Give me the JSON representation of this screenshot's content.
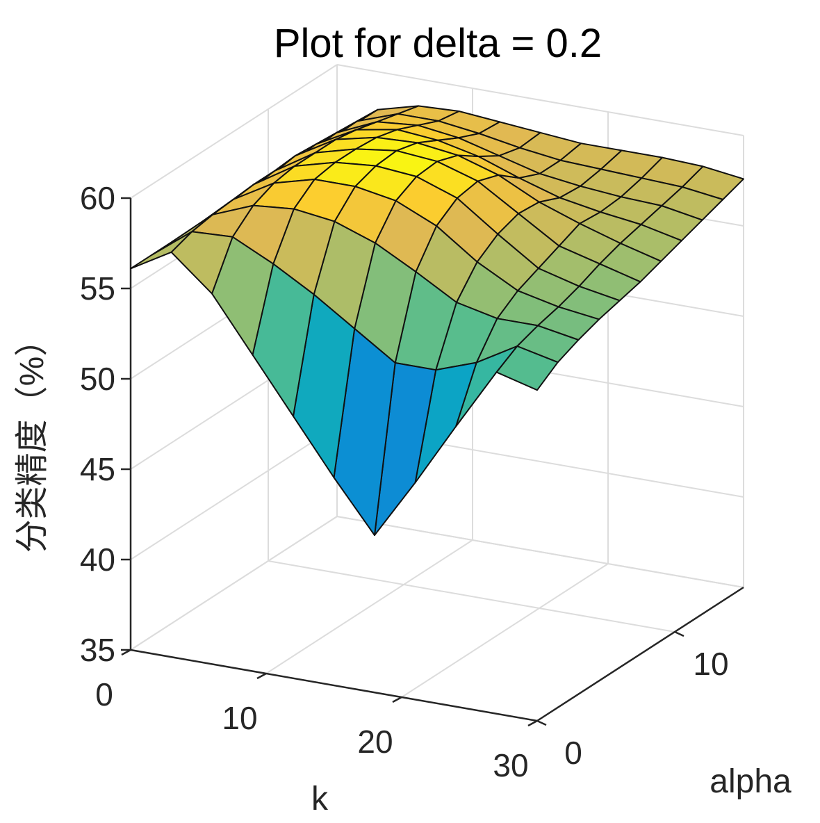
{
  "chart_data": {
    "type": "surface",
    "title": "Plot for delta = 0.2",
    "xlabel": "k",
    "ylabel": "alpha",
    "zlabel": "分类精度（%）",
    "x_ticks": [
      "0",
      "10",
      "20",
      "30"
    ],
    "y_ticks": [
      "0",
      "10"
    ],
    "z_ticks": [
      "35",
      "40",
      "45",
      "50",
      "55",
      "60"
    ],
    "xlim": [
      0,
      30
    ],
    "ylim": [
      0,
      15
    ],
    "zlim": [
      35,
      60
    ],
    "grid": true,
    "colormap": "parula",
    "x": [
      0,
      3,
      6,
      9,
      12,
      15,
      18,
      21,
      24,
      27,
      30
    ],
    "y": [
      0,
      1.5,
      3,
      4.5,
      6,
      7.5,
      9,
      10.5,
      12,
      13.5,
      15
    ],
    "z": [
      [
        56.1,
        56.1,
        56.1,
        56.1,
        56.1,
        56.1,
        56.1,
        56.1,
        56.1,
        56.1,
        56.1
      ],
      [
        57.4,
        57.8,
        58.0,
        58.1,
        58.2,
        58.2,
        58.3,
        58.2,
        58.1,
        58.0,
        57.9
      ],
      [
        55.5,
        57.9,
        58.9,
        59.4,
        59.6,
        59.6,
        59.6,
        59.4,
        59.1,
        58.8,
        58.5
      ],
      [
        52.5,
        56.8,
        59.1,
        60.0,
        60.2,
        60.2,
        60.1,
        59.8,
        59.3,
        58.8,
        58.6
      ],
      [
        49.5,
        55.5,
        58.8,
        60.0,
        60.4,
        60.5,
        60.2,
        59.6,
        59.0,
        58.5,
        58.4
      ],
      [
        46.5,
        54.0,
        58.0,
        59.6,
        60.2,
        60.3,
        59.9,
        59.1,
        58.4,
        58.1,
        58.2
      ],
      [
        43.7,
        52.5,
        56.8,
        58.6,
        59.4,
        59.6,
        59.2,
        58.3,
        57.8,
        57.8,
        58.0
      ],
      [
        47.0,
        52.5,
        55.5,
        57.0,
        57.8,
        58.2,
        58.1,
        57.6,
        57.5,
        57.7,
        58.0
      ],
      [
        50.5,
        53.3,
        55.0,
        55.8,
        56.3,
        56.8,
        57.3,
        57.2,
        57.3,
        57.6,
        58.0
      ],
      [
        53.9,
        54.6,
        55.0,
        55.3,
        55.7,
        56.2,
        56.6,
        56.9,
        57.2,
        57.5,
        57.9
      ],
      [
        53.3,
        54.1,
        54.6,
        55.0,
        55.3,
        55.6,
        56.0,
        56.4,
        56.8,
        57.2,
        57.6
      ]
    ]
  }
}
